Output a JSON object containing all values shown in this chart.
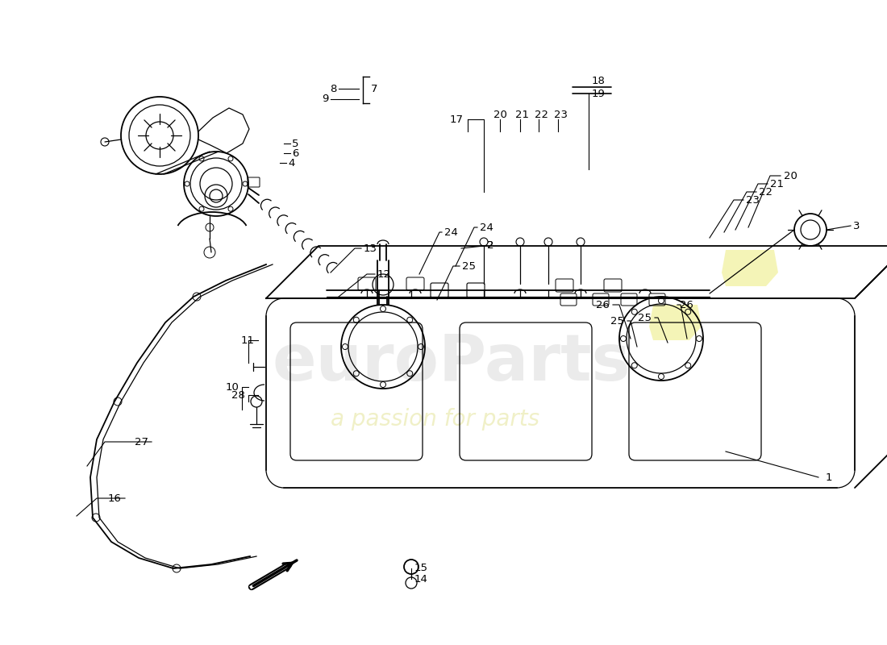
{
  "bg_color": "#ffffff",
  "line_color": "#000000",
  "label_fontsize": 9.5,
  "yellow_color": "#e8e860",
  "watermark1": "euroParts",
  "watermark2": "a passion for parts",
  "wm1_color": "#c0c0c0",
  "wm2_color": "#d4d460"
}
